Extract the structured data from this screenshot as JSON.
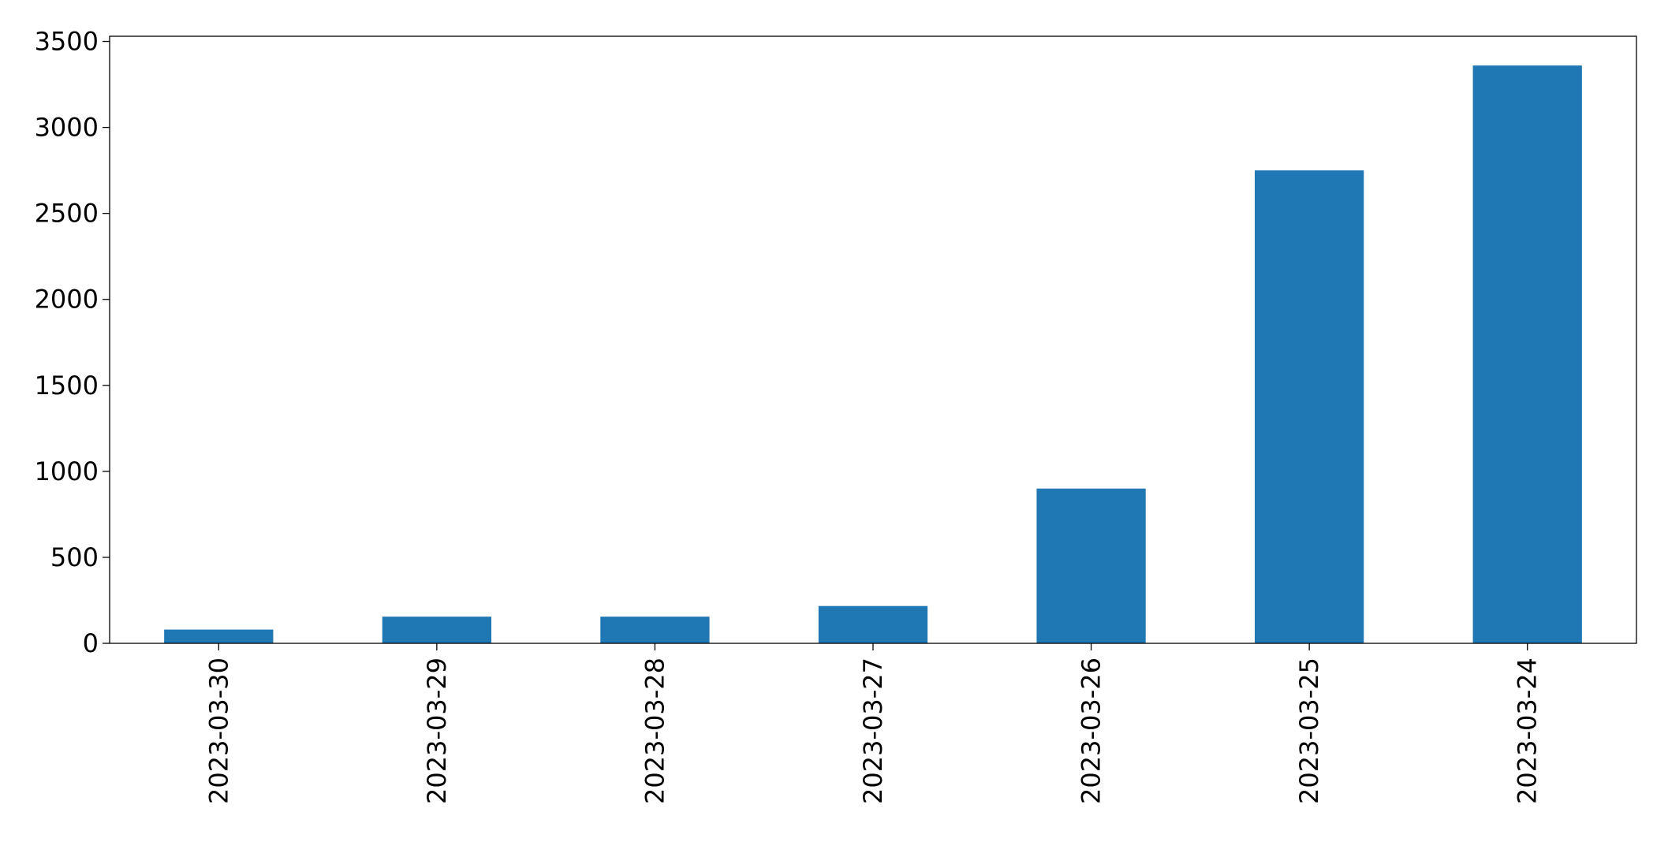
{
  "chart_data": {
    "type": "bar",
    "categories": [
      "2023-03-30",
      "2023-03-29",
      "2023-03-28",
      "2023-03-27",
      "2023-03-26",
      "2023-03-25",
      "2023-03-24"
    ],
    "values": [
      80,
      155,
      155,
      217,
      900,
      2750,
      3360
    ],
    "color": "#1f77b4",
    "ylim": [
      0,
      3530
    ],
    "yticks": [
      0,
      500,
      1000,
      1500,
      2000,
      2500,
      3000,
      3500
    ],
    "grid": false
  }
}
